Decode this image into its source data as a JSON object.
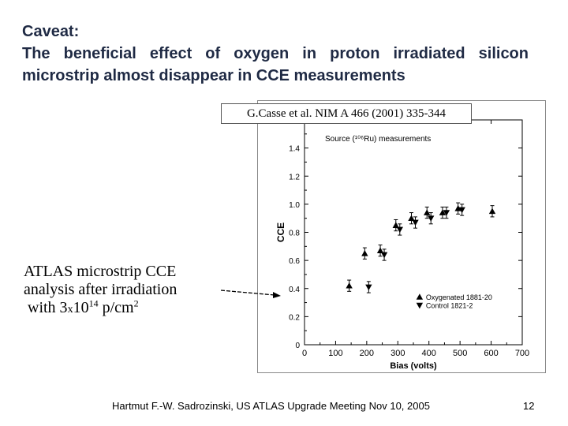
{
  "slide": {
    "caveat_heading": "Caveat:",
    "caveat_text": "The beneficial effect of oxygen in proton irradiated silicon microstrip almost disappear in CCE measurements",
    "citation": "G.Casse et al. NIM A 466 (2001) 335-344",
    "atlas_line1": "ATLAS microstrip CCE",
    "atlas_line2": "analysis after irradiation",
    "atlas_line3_prefix": "with 3",
    "atlas_line3_times": "x",
    "atlas_line3_base": "10",
    "atlas_line3_exp": "14",
    "atlas_line3_unit": " p/cm",
    "atlas_line3_unit_exp": "2",
    "footer": "Hartmut F.-W. Sadrozinski, US ATLAS Upgrade Meeting Nov 10,  2005",
    "page_number": "12"
  },
  "chart_data": {
    "type": "scatter",
    "title": "Source (¹⁰⁶Ru) measurements",
    "xlabel": "Bias (volts)",
    "ylabel": "CCE",
    "xlim": [
      0,
      700
    ],
    "ylim": [
      0,
      1.6
    ],
    "x_ticks": [
      "0",
      "100",
      "200",
      "300",
      "400",
      "500",
      "600",
      "700"
    ],
    "y_ticks": [
      "0",
      "0.2",
      "0.4",
      "0.6",
      "0.8",
      "1.0",
      "1.2",
      "1.4"
    ],
    "legend_position": "bottom-right",
    "series": [
      {
        "name": "Oxygenated 1881-20",
        "marker": "triangle",
        "x": [
          150,
          200,
          250,
          300,
          350,
          400,
          450,
          500,
          610
        ],
        "y": [
          0.42,
          0.65,
          0.67,
          0.85,
          0.9,
          0.94,
          0.94,
          0.97,
          0.95
        ],
        "err": [
          0.04,
          0.04,
          0.04,
          0.04,
          0.04,
          0.04,
          0.04,
          0.04,
          0.04
        ]
      },
      {
        "name": "Control 1821-2",
        "marker": "triangle-down",
        "x": [
          200,
          250,
          300,
          350,
          400,
          450,
          500
        ],
        "y": [
          0.41,
          0.64,
          0.82,
          0.87,
          0.9,
          0.94,
          0.96
        ],
        "err": [
          0.04,
          0.04,
          0.04,
          0.04,
          0.04,
          0.04,
          0.04
        ]
      }
    ]
  }
}
